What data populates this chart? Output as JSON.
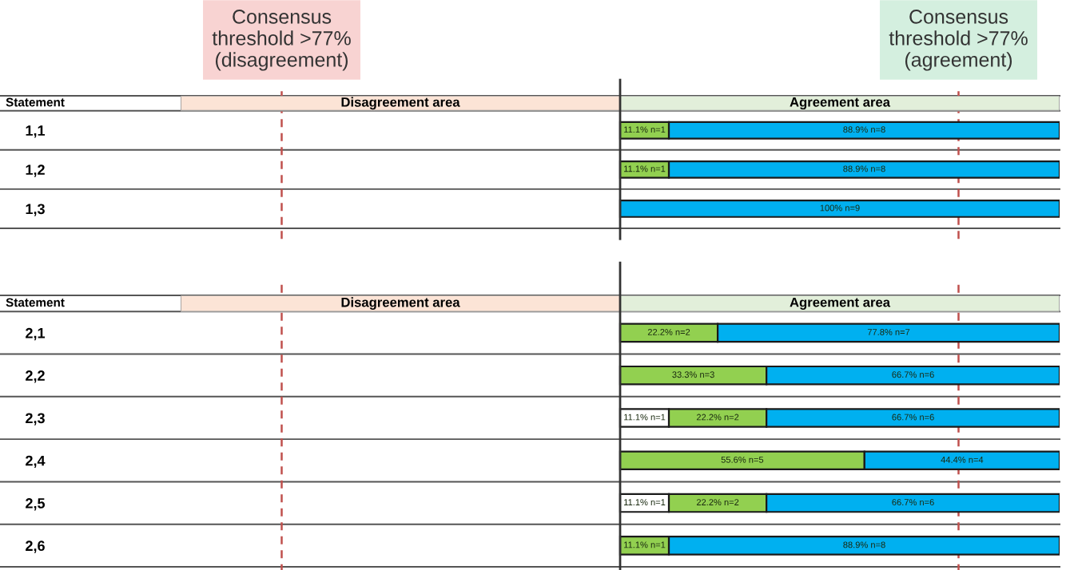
{
  "chart_data": [
    {
      "type": "bar",
      "orientation": "horizontal",
      "stacked": true,
      "ylabel": "Statement",
      "categories": [
        "1,1",
        "1,2",
        "1,3"
      ],
      "series": [
        {
          "color": "#ffffff",
          "values": [
            null,
            null,
            null
          ],
          "value_labels": [
            null,
            null,
            null
          ]
        },
        {
          "color": "#92d050",
          "values": [
            11.1,
            11.1,
            null
          ],
          "value_labels": [
            "11.1% n=1",
            "11.1% n=1",
            null
          ]
        },
        {
          "color": "#00b0f0",
          "values": [
            88.9,
            88.9,
            100
          ],
          "value_labels": [
            "88.9% n=8",
            "88.9% n=8",
            "100% n=9"
          ]
        }
      ],
      "xlim": [
        -100,
        100
      ],
      "tick_labels": "y",
      "bands": [
        {
          "axis": "x",
          "from": -100,
          "to": 0,
          "label": "Disagreement area",
          "color": "#fce4d6"
        },
        {
          "axis": "x",
          "from": 0,
          "to": 100,
          "label": "Agreement area",
          "color": "#e2efda"
        }
      ],
      "ref_lines": [
        {
          "axis": "x",
          "value": -77,
          "label": "Consensus\nthreshold >77%\n(disagreement)",
          "color": "#c0504d",
          "line_style": "dashed"
        },
        {
          "axis": "x",
          "value": 77,
          "label": "Consensus\nthreshold >77%\n(agreement)",
          "color": "#c0504d",
          "line_style": "dashed"
        }
      ]
    },
    {
      "type": "bar",
      "orientation": "horizontal",
      "stacked": true,
      "ylabel": "Statement",
      "categories": [
        "2,1",
        "2,2",
        "2,3",
        "2,4",
        "2,5",
        "2,6"
      ],
      "series": [
        {
          "color": "#ffffff",
          "values": [
            null,
            null,
            11.1,
            null,
            11.1,
            null
          ],
          "value_labels": [
            null,
            null,
            "11.1% n=1",
            null,
            "11.1% n=1",
            null
          ]
        },
        {
          "color": "#92d050",
          "values": [
            22.2,
            33.3,
            22.2,
            55.6,
            22.2,
            11.1
          ],
          "value_labels": [
            "22.2% n=2",
            "33.3% n=3",
            "22.2% n=2",
            "55.6% n=5",
            "22.2% n=2",
            "11.1% n=1"
          ]
        },
        {
          "color": "#00b0f0",
          "values": [
            77.8,
            66.7,
            66.7,
            44.4,
            66.7,
            88.9
          ],
          "value_labels": [
            "77.8% n=7",
            "66.7% n=6",
            "66.7% n=6",
            "44.4% n=4",
            "66.7% n=6",
            "88.9% n=8"
          ]
        }
      ],
      "xlim": [
        -100,
        100
      ],
      "tick_labels": "y",
      "bands": [
        {
          "axis": "x",
          "from": -100,
          "to": 0,
          "label": "Disagreement area",
          "color": "#fce4d6"
        },
        {
          "axis": "x",
          "from": 0,
          "to": 100,
          "label": "Agreement area",
          "color": "#e2efda"
        }
      ],
      "ref_lines": [
        {
          "axis": "x",
          "value": -77,
          "color": "#c0504d",
          "line_style": "dashed"
        },
        {
          "axis": "x",
          "value": 77,
          "color": "#c0504d",
          "line_style": "dashed"
        }
      ]
    }
  ]
}
